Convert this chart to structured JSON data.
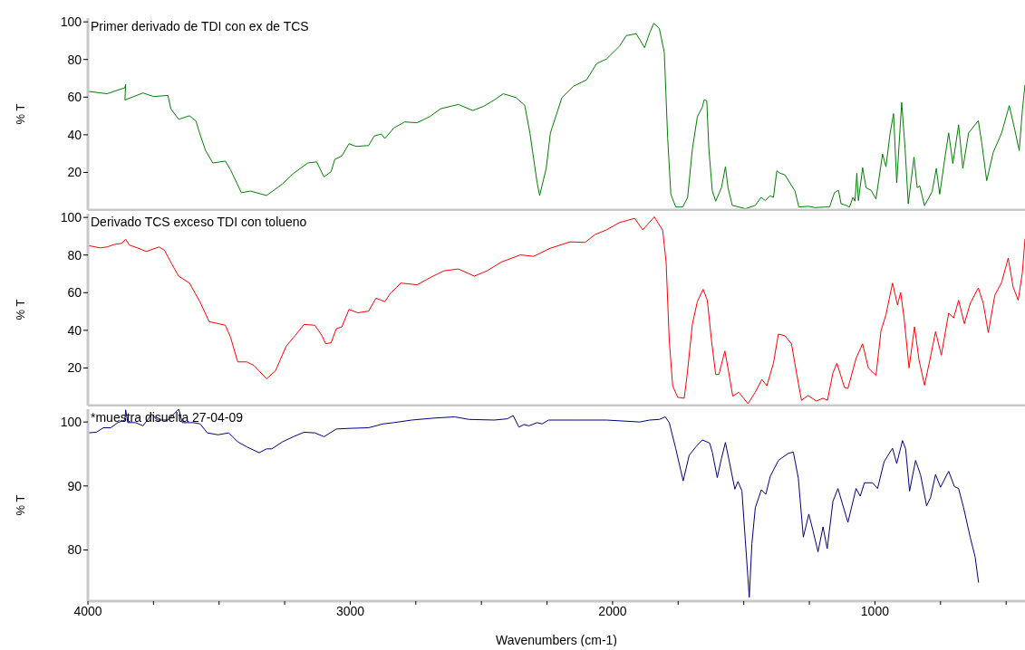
{
  "chart_data": [
    {
      "type": "line",
      "title": "Primer derivado de TDI con ex de TCS",
      "ylabel": "% T",
      "xlim": [
        4000,
        428
      ],
      "ylim": [
        0,
        102
      ],
      "yticks": [
        20,
        40,
        60,
        80,
        100
      ],
      "tick_labels": "y",
      "series": [
        {
          "color": "#008000",
          "x": [
            4000,
            3927,
            3859,
            3856,
            3859,
            3790,
            3749,
            3695,
            3684,
            3654,
            3613,
            3588,
            3572,
            3551,
            3524,
            3476,
            3456,
            3415,
            3381,
            3319,
            3258,
            3217,
            3162,
            3128,
            3100,
            3073,
            3059,
            3032,
            3005,
            2977,
            2930,
            2909,
            2882,
            2868,
            2834,
            2793,
            2745,
            2697,
            2656,
            2588,
            2533,
            2492,
            2451,
            2417,
            2369,
            2335,
            2315,
            2288,
            2278,
            2253,
            2237,
            2193,
            2149,
            2099,
            2061,
            2023,
            1973,
            1948,
            1910,
            1878,
            1859,
            1843,
            1822,
            1803,
            1790,
            1778,
            1759,
            1733,
            1714,
            1696,
            1677,
            1658,
            1651,
            1641,
            1633,
            1620,
            1607,
            1585,
            1570,
            1560,
            1544,
            1494,
            1456,
            1434,
            1418,
            1400,
            1387,
            1374,
            1362,
            1343,
            1324,
            1305,
            1290,
            1254,
            1229,
            1192,
            1173,
            1154,
            1139,
            1129,
            1110,
            1097,
            1084,
            1076,
            1069,
            1063,
            1047,
            1034,
            1015,
            996,
            971,
            958,
            942,
            929,
            917,
            898,
            885,
            873,
            851,
            839,
            829,
            811,
            782,
            766,
            753,
            732,
            719,
            703,
            681,
            665,
            643,
            606,
            593,
            574,
            549,
            517,
            488,
            467,
            450,
            438,
            428
          ],
          "values": [
            63.1,
            61.8,
            65,
            66.8,
            58.5,
            62.2,
            60.3,
            60.9,
            53.8,
            48.2,
            50.1,
            47.3,
            39.9,
            31.5,
            25,
            26,
            21.3,
            9.2,
            10.1,
            7.7,
            13.9,
            19.4,
            25,
            25.6,
            17.6,
            20.4,
            26.9,
            28.7,
            35.2,
            33.8,
            34.3,
            39.3,
            40.4,
            38,
            43.6,
            46.8,
            46.4,
            49.6,
            53.8,
            56.1,
            52.9,
            55.1,
            58.5,
            61.8,
            59.8,
            55.7,
            40.8,
            14.8,
            7.7,
            22.2,
            41,
            59.8,
            65.8,
            69.2,
            77.8,
            80.3,
            87.2,
            92.7,
            93.7,
            86.3,
            94,
            99.2,
            96.6,
            83.8,
            38.1,
            8.4,
            1.6,
            1.6,
            6.7,
            32.4,
            49.5,
            54.7,
            58.6,
            58.1,
            32.4,
            10.2,
            4.7,
            11.9,
            23,
            11.9,
            2.5,
            0.7,
            2.5,
            6.7,
            5,
            7.6,
            6.7,
            20.8,
            19.6,
            18.7,
            14.4,
            10.2,
            1.6,
            2,
            1.3,
            1.6,
            1.6,
            9.3,
            10.5,
            3.3,
            2.5,
            1.6,
            6.7,
            4.7,
            19.6,
            5,
            22.5,
            11.9,
            10.5,
            5.9,
            29.8,
            23,
            41,
            51.2,
            14.4,
            57.2,
            32.4,
            3.3,
            28.1,
            11.9,
            12.8,
            2.3,
            9.8,
            22.1,
            8.4,
            29,
            41,
            24.7,
            45.3,
            22.1,
            41,
            47.5,
            35.8,
            15.6,
            30.7,
            41,
            55.5,
            42.7,
            31.6,
            53,
            66.6
          ]
        }
      ]
    },
    {
      "type": "line",
      "title": "Derivado TCS exceso TDI con tolueno",
      "ylabel": "% T",
      "xlim": [
        4000,
        428
      ],
      "ylim": [
        0,
        102
      ],
      "yticks": [
        20,
        40,
        60,
        80,
        100
      ],
      "tick_labels": "y",
      "series": [
        {
          "color": "#ff0000",
          "x": [
            4000,
            3954,
            3927,
            3900,
            3872,
            3856,
            3842,
            3811,
            3777,
            3729,
            3708,
            3681,
            3654,
            3613,
            3572,
            3538,
            3476,
            3456,
            3429,
            3394,
            3367,
            3319,
            3285,
            3244,
            3210,
            3176,
            3135,
            3108,
            3094,
            3073,
            3053,
            3032,
            3005,
            2971,
            2930,
            2902,
            2868,
            2848,
            2807,
            2745,
            2697,
            2643,
            2588,
            2527,
            2479,
            2424,
            2351,
            2301,
            2238,
            2162,
            2105,
            2067,
            2023,
            1973,
            1916,
            1885,
            1841,
            1809,
            1796,
            1784,
            1771,
            1752,
            1727,
            1715,
            1696,
            1677,
            1655,
            1639,
            1623,
            1607,
            1595,
            1572,
            1557,
            1542,
            1519,
            1484,
            1456,
            1431,
            1412,
            1387,
            1368,
            1343,
            1318,
            1299,
            1280,
            1255,
            1223,
            1198,
            1181,
            1160,
            1145,
            1116,
            1103,
            1072,
            1047,
            1025,
            996,
            977,
            958,
            933,
            914,
            902,
            889,
            870,
            849,
            832,
            811,
            788,
            769,
            747,
            719,
            700,
            681,
            659,
            637,
            606,
            587,
            568,
            543,
            517,
            492,
            473,
            454,
            438,
            428
          ],
          "values": [
            85.1,
            83.8,
            84.3,
            85.6,
            86.2,
            88.4,
            85.3,
            83.8,
            81.9,
            84.3,
            82.5,
            75.4,
            68.8,
            65.1,
            54.9,
            44.6,
            42.7,
            36.2,
            23.2,
            23.2,
            21.3,
            14.2,
            18.5,
            31.6,
            37.2,
            43.1,
            42.7,
            37.2,
            32.9,
            33.4,
            40.9,
            41.8,
            51.1,
            49.3,
            50.2,
            57.1,
            55.2,
            59.5,
            65.1,
            64.2,
            67.9,
            71.6,
            72.6,
            68.8,
            71.6,
            76.3,
            80.1,
            79.3,
            83.6,
            87,
            86.7,
            90.9,
            93.4,
            97.3,
            99.5,
            93.4,
            100.3,
            93.1,
            76.1,
            34.6,
            10.5,
            4.4,
            3.9,
            17.4,
            43.2,
            55.2,
            61.8,
            56,
            34.6,
            16.5,
            16.5,
            29,
            17.4,
            5,
            7.1,
            1,
            7.1,
            13.9,
            10.5,
            22.5,
            38,
            37.1,
            32.8,
            17.4,
            2.8,
            5.3,
            2.4,
            3.9,
            2.8,
            17.4,
            22.5,
            9.6,
            9.1,
            25.1,
            32.8,
            19.9,
            16,
            39.7,
            48.3,
            65.1,
            53.5,
            60.1,
            46.6,
            20,
            41.8,
            24.2,
            10.8,
            26,
            39.3,
            26.8,
            49.1,
            46.6,
            56,
            43.5,
            54.3,
            62.5,
            54.3,
            38.8,
            58.6,
            65.5,
            78.4,
            62.9,
            56,
            70.6,
            88.7
          ]
        }
      ]
    },
    {
      "type": "line",
      "title": "*muestra disuelta 27-04-09",
      "ylabel": "% T",
      "xlabel": "Wavenumbers (cm-1)",
      "xlim": [
        4000,
        428
      ],
      "xticks": [
        4000,
        {
          "value": 3750,
          "label": null
        },
        {
          "value": 3500,
          "label": null
        },
        {
          "value": 3250,
          "label": null
        },
        3000,
        {
          "value": 2750,
          "label": null
        },
        {
          "value": 2500,
          "label": null
        },
        {
          "value": 2250,
          "label": null
        },
        2000,
        {
          "value": 1750,
          "label": null
        },
        {
          "value": 1500,
          "label": null
        },
        {
          "value": 1250,
          "label": null
        },
        1000,
        {
          "value": 750,
          "label": null
        },
        {
          "value": 500,
          "label": null
        }
      ],
      "ylim": [
        72,
        102
      ],
      "yticks": [
        80,
        90,
        100
      ],
      "series": [
        {
          "color": "#000080",
          "x": [
            4000,
            3968,
            3941,
            3913,
            3886,
            3859,
            3856,
            3848,
            3818,
            3790,
            3756,
            3736,
            3695,
            3678,
            3654,
            3640,
            3599,
            3572,
            3545,
            3504,
            3463,
            3429,
            3394,
            3347,
            3319,
            3299,
            3258,
            3217,
            3176,
            3135,
            3100,
            3053,
            3005,
            2930,
            2875,
            2834,
            2766,
            2684,
            2602,
            2547,
            2451,
            2401,
            2379,
            2357,
            2338,
            2319,
            2288,
            2269,
            2244,
            2149,
            2023,
            1897,
            1859,
            1822,
            1799,
            1784,
            1759,
            1731,
            1708,
            1683,
            1658,
            1630,
            1620,
            1601,
            1585,
            1570,
            1555,
            1534,
            1522,
            1507,
            1494,
            1479,
            1469,
            1456,
            1433,
            1416,
            1399,
            1368,
            1330,
            1311,
            1292,
            1273,
            1252,
            1236,
            1217,
            1198,
            1182,
            1160,
            1141,
            1103,
            1072,
            1056,
            1040,
            1009,
            990,
            965,
            933,
            917,
            895,
            883,
            868,
            845,
            826,
            803,
            788,
            769,
            750,
            719,
            697,
            681,
            662,
            637,
            618,
            605
          ],
          "values": [
            98.3,
            98.4,
            99.1,
            99.1,
            99.9,
            100.3,
            101.9,
            99.9,
            99.9,
            99.4,
            101.2,
            100.3,
            100.3,
            101,
            102,
            99.9,
            99.9,
            99.7,
            98.3,
            98,
            98.3,
            96.9,
            96.1,
            95.2,
            95.8,
            95.8,
            96.9,
            97.7,
            98.4,
            98.3,
            97.7,
            98.9,
            99,
            99.1,
            99.7,
            99.9,
            100.3,
            100.6,
            100.8,
            100.4,
            100.3,
            100.5,
            101,
            99.2,
            99.6,
            99.4,
            99.9,
            99.7,
            100.3,
            100.3,
            100.3,
            100,
            100.3,
            100.4,
            100.8,
            99.9,
            95.8,
            90.8,
            94.8,
            96.1,
            97.2,
            96.7,
            95.3,
            91.3,
            94.3,
            96.8,
            93.8,
            89.5,
            90.7,
            89.2,
            81.5,
            72.6,
            81,
            86.6,
            89.4,
            88.7,
            91.5,
            94,
            95.1,
            95.3,
            91.2,
            82,
            85.6,
            83,
            79.7,
            83.6,
            80.2,
            87.6,
            89.6,
            84.3,
            89.6,
            88.4,
            90.5,
            90.5,
            89.6,
            93.8,
            95.9,
            93.5,
            97.1,
            95.8,
            89.2,
            94,
            91.7,
            86.9,
            88.2,
            91.8,
            89.8,
            92.3,
            89.9,
            89.6,
            86.6,
            82,
            78.9,
            74.9
          ]
        }
      ]
    }
  ]
}
